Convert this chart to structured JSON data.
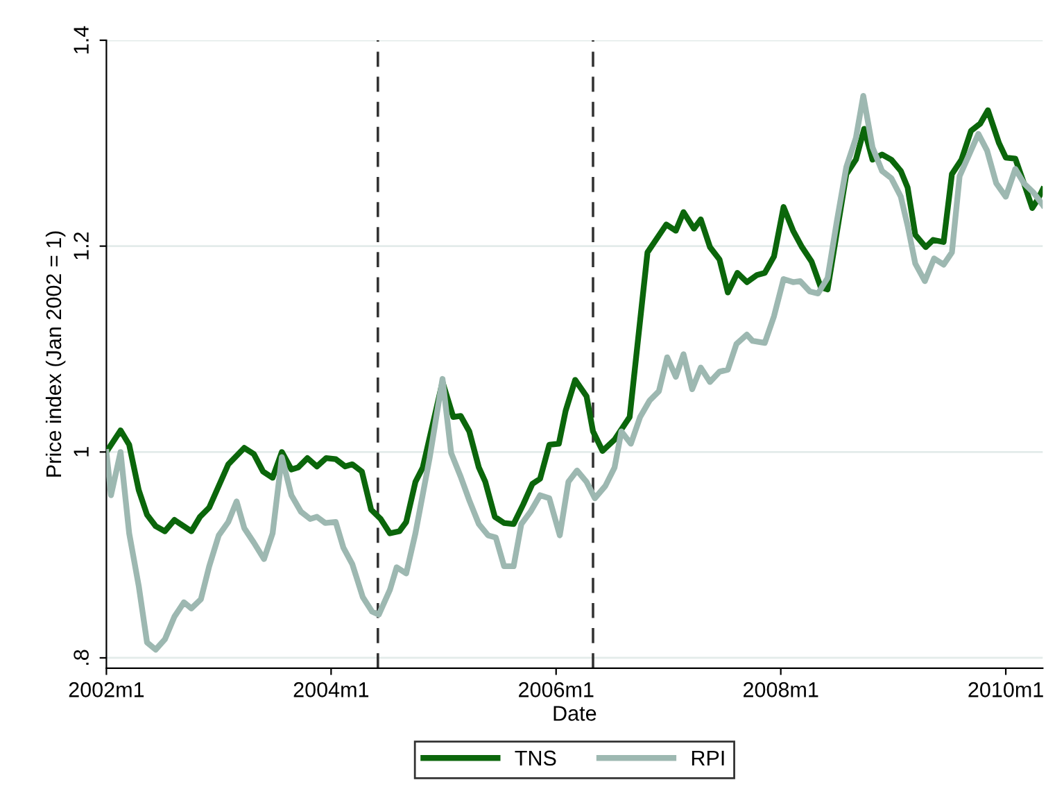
{
  "chart_data": {
    "type": "line",
    "xlabel": "Date",
    "ylabel": "Price index (Jan 2002 = 1)",
    "xlim": [
      "2002-01",
      "2010-05"
    ],
    "ylim": [
      0.79,
      1.4
    ],
    "xticks": [
      {
        "value": "2002-01",
        "label": "2002m1"
      },
      {
        "value": "2004-01",
        "label": "2004m1"
      },
      {
        "value": "2006-01",
        "label": "2006m1"
      },
      {
        "value": "2008-01",
        "label": "2008m1"
      },
      {
        "value": "2010-01",
        "label": "2010m1"
      }
    ],
    "yticks": [
      {
        "value": 0.8,
        "label": ".8"
      },
      1,
      1.2,
      1.4
    ],
    "grid": "y",
    "legend": "bottom",
    "line_style": "solid",
    "marker": "none",
    "ref_lines": [
      {
        "axis": "x",
        "value": "2004-06",
        "color": "#333333",
        "line_style": "dashed"
      },
      {
        "axis": "x",
        "value": "2006-05",
        "color": "#333333",
        "line_style": "dashed"
      }
    ],
    "series": [
      {
        "name": "TNS",
        "color": "#0b660b",
        "x": [
          "2002-01-01",
          "2002-02-16",
          "2002-03-16",
          "2002-04-16",
          "2002-05-13",
          "2002-06-10",
          "2002-07-10",
          "2002-08-10",
          "2002-10-04",
          "2002-11-01",
          "2002-12-01",
          "2003-02-01",
          "2003-03-25",
          "2003-04-25",
          "2003-05-25",
          "2003-06-25",
          "2003-07-25",
          "2003-08-25",
          "2003-09-16",
          "2003-10-16",
          "2003-11-16",
          "2003-12-16",
          "2004-01-16",
          "2004-02-16",
          "2004-03-10",
          "2004-04-10",
          "2004-05-10",
          "2004-06-10",
          "2004-07-10",
          "2004-08-10",
          "2004-09-01",
          "2004-10-01",
          "2004-10-25",
          "2004-12-28",
          "2005-02-01",
          "2005-02-25",
          "2005-03-25",
          "2005-04-25",
          "2005-05-16",
          "2005-06-16",
          "2005-07-16",
          "2005-08-16",
          "2005-09-16",
          "2005-10-16",
          "2005-11-10",
          "2005-12-10",
          "2006-01-10",
          "2006-02-01",
          "2006-03-04",
          "2006-04-10",
          "2006-05-01",
          "2006-06-01",
          "2006-07-10",
          "2006-08-28",
          "2006-10-25",
          "2006-12-25",
          "2007-01-25",
          "2007-02-19",
          "2007-03-25",
          "2007-04-16",
          "2007-05-16",
          "2007-06-16",
          "2007-07-13",
          "2007-08-13",
          "2007-09-13",
          "2007-10-16",
          "2007-11-10",
          "2007-12-10",
          "2008-01-10",
          "2008-02-10",
          "2008-03-10",
          "2008-04-10",
          "2008-05-10",
          "2008-06-01",
          "2008-08-01",
          "2008-09-01",
          "2008-09-28",
          "2008-10-25",
          "2008-11-25",
          "2008-12-25",
          "2009-01-25",
          "2009-02-16",
          "2009-03-13",
          "2009-04-16",
          "2009-05-10",
          "2009-06-13",
          "2009-07-10",
          "2009-08-10",
          "2009-09-10",
          "2009-10-10",
          "2009-11-04",
          "2009-12-10",
          "2010-01-01",
          "2010-02-01",
          "2010-03-01",
          "2010-03-28",
          "2010-04-16",
          "2010-05-01"
        ],
        "values": [
          1.0,
          1.021,
          1.007,
          0.963,
          0.939,
          0.928,
          0.923,
          0.934,
          0.923,
          0.937,
          0.946,
          0.988,
          1.004,
          0.998,
          0.981,
          0.975,
          1.0,
          0.983,
          0.985,
          0.994,
          0.986,
          0.994,
          0.993,
          0.986,
          0.988,
          0.981,
          0.944,
          0.935,
          0.921,
          0.923,
          0.932,
          0.971,
          0.985,
          1.068,
          1.034,
          1.035,
          1.02,
          0.985,
          0.971,
          0.937,
          0.931,
          0.93,
          0.949,
          0.969,
          0.974,
          1.007,
          1.008,
          1.04,
          1.07,
          1.054,
          1.02,
          1.001,
          1.012,
          1.034,
          1.194,
          1.221,
          1.215,
          1.233,
          1.217,
          1.226,
          1.199,
          1.187,
          1.155,
          1.174,
          1.165,
          1.172,
          1.174,
          1.19,
          1.238,
          1.215,
          1.199,
          1.185,
          1.16,
          1.158,
          1.27,
          1.284,
          1.314,
          1.284,
          1.289,
          1.284,
          1.273,
          1.257,
          1.211,
          1.199,
          1.206,
          1.204,
          1.27,
          1.284,
          1.312,
          1.319,
          1.332,
          1.3,
          1.286,
          1.285,
          1.261,
          1.237,
          1.246,
          1.255
        ]
      },
      {
        "name": "RPI",
        "color": "#9db8b1",
        "x": [
          "2002-01-01",
          "2002-01-16",
          "2002-02-16",
          "2002-03-16",
          "2002-04-16",
          "2002-05-13",
          "2002-06-10",
          "2002-07-10",
          "2002-08-10",
          "2002-09-10",
          "2002-10-04",
          "2002-11-04",
          "2002-12-01",
          "2003-01-01",
          "2003-02-01",
          "2003-02-28",
          "2003-03-25",
          "2003-04-25",
          "2003-05-28",
          "2003-06-25",
          "2003-07-25",
          "2003-08-25",
          "2003-09-25",
          "2003-10-25",
          "2003-11-16",
          "2003-12-13",
          "2004-01-16",
          "2004-02-10",
          "2004-03-10",
          "2004-04-13",
          "2004-05-13",
          "2004-06-04",
          "2004-07-10",
          "2004-08-01",
          "2004-09-01",
          "2004-10-01",
          "2004-11-16",
          "2004-12-28",
          "2005-01-25",
          "2005-02-25",
          "2005-03-25",
          "2005-04-25",
          "2005-05-25",
          "2005-06-19",
          "2005-07-16",
          "2005-08-16",
          "2005-09-10",
          "2005-10-10",
          "2005-11-10",
          "2005-12-10",
          "2006-01-13",
          "2006-02-10",
          "2006-03-10",
          "2006-04-10",
          "2006-05-07",
          "2006-06-10",
          "2006-07-10",
          "2006-08-01",
          "2006-09-01",
          "2006-10-01",
          "2006-11-01",
          "2006-12-01",
          "2006-12-28",
          "2007-01-25",
          "2007-02-19",
          "2007-03-19",
          "2007-04-16",
          "2007-05-16",
          "2007-06-16",
          "2007-07-13",
          "2007-08-10",
          "2007-09-13",
          "2007-10-01",
          "2007-11-10",
          "2007-12-10",
          "2008-01-10",
          "2008-02-10",
          "2008-03-04",
          "2008-04-04",
          "2008-05-01",
          "2008-06-01",
          "2008-07-01",
          "2008-08-01",
          "2008-09-01",
          "2008-09-25",
          "2008-10-25",
          "2008-11-25",
          "2008-12-25",
          "2009-01-25",
          "2009-02-16",
          "2009-03-13",
          "2009-04-13",
          "2009-05-13",
          "2009-06-13",
          "2009-07-10",
          "2009-08-04",
          "2009-09-10",
          "2009-10-04",
          "2009-11-01",
          "2009-12-01",
          "2010-01-01",
          "2010-02-01",
          "2010-03-01",
          "2010-04-01",
          "2010-05-01"
        ],
        "values": [
          1.0,
          0.958,
          1.0,
          0.921,
          0.87,
          0.815,
          0.808,
          0.818,
          0.84,
          0.854,
          0.848,
          0.857,
          0.889,
          0.919,
          0.932,
          0.952,
          0.926,
          0.912,
          0.896,
          0.921,
          0.995,
          0.958,
          0.942,
          0.935,
          0.937,
          0.931,
          0.932,
          0.907,
          0.891,
          0.859,
          0.845,
          0.842,
          0.866,
          0.888,
          0.882,
          0.921,
          0.994,
          1.071,
          0.999,
          0.976,
          0.953,
          0.93,
          0.919,
          0.917,
          0.889,
          0.889,
          0.93,
          0.942,
          0.958,
          0.955,
          0.919,
          0.971,
          0.982,
          0.971,
          0.955,
          0.967,
          0.985,
          1.02,
          1.008,
          1.034,
          1.05,
          1.059,
          1.092,
          1.073,
          1.095,
          1.061,
          1.082,
          1.068,
          1.078,
          1.08,
          1.105,
          1.114,
          1.108,
          1.106,
          1.132,
          1.168,
          1.165,
          1.166,
          1.156,
          1.154,
          1.169,
          1.224,
          1.277,
          1.305,
          1.346,
          1.296,
          1.273,
          1.266,
          1.248,
          1.22,
          1.183,
          1.166,
          1.188,
          1.182,
          1.194,
          1.268,
          1.293,
          1.309,
          1.293,
          1.261,
          1.248,
          1.275,
          1.261,
          1.252,
          1.24
        ]
      }
    ]
  }
}
